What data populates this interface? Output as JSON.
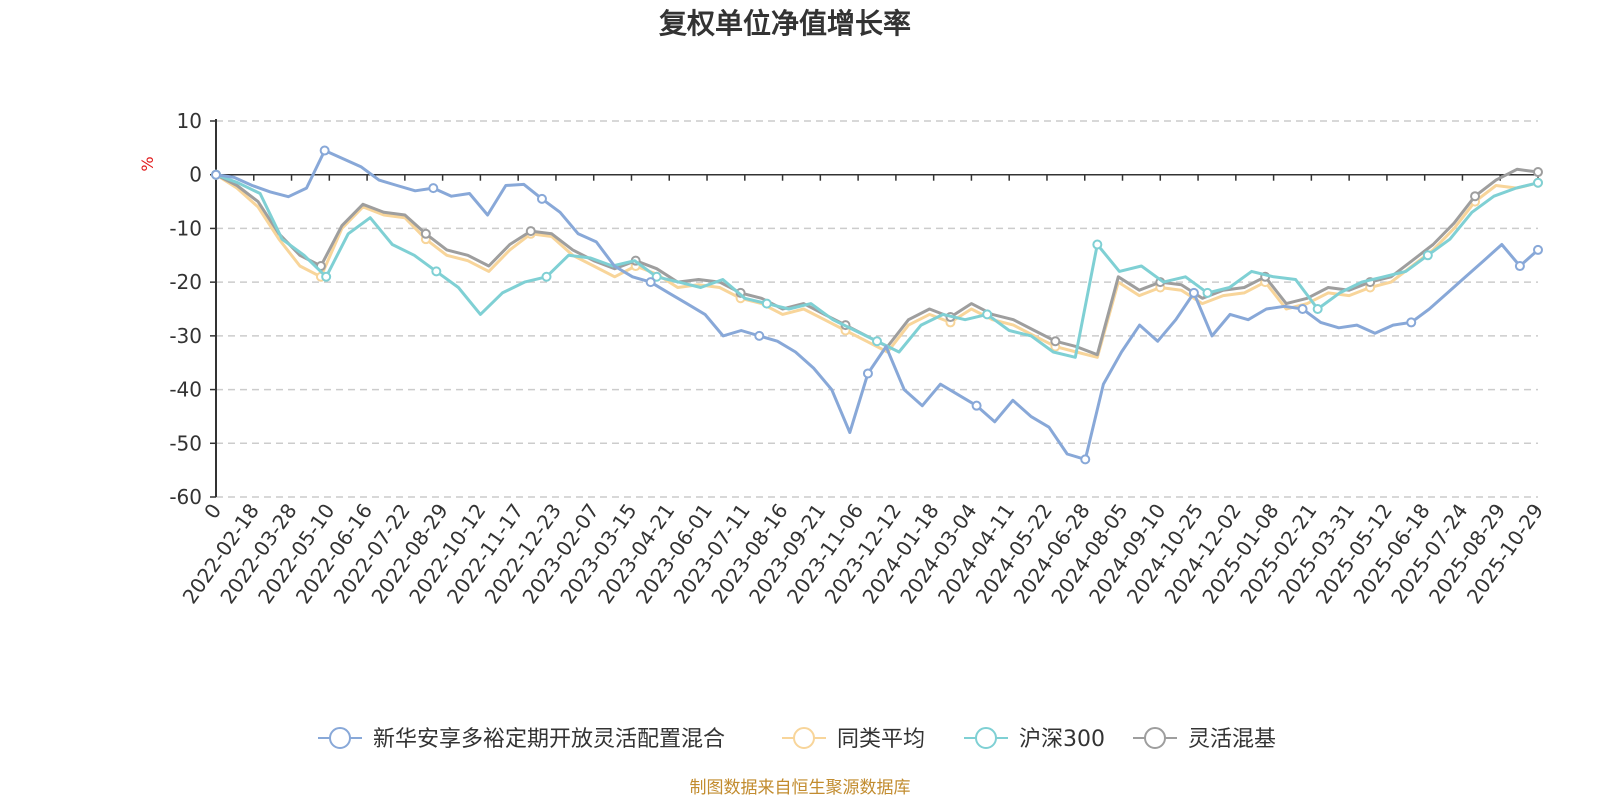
{
  "chart_data": {
    "type": "line",
    "title": "复权单位净值增长率",
    "ylabel": "%",
    "ylim": [
      -60,
      10
    ],
    "yticks": [
      10,
      0,
      -10,
      -20,
      -30,
      -40,
      -50,
      -60
    ],
    "x_tick_labels": [
      "0",
      "2022-02-18",
      "2022-03-28",
      "2022-05-10",
      "2022-06-16",
      "2022-07-22",
      "2022-08-29",
      "2022-10-12",
      "2022-11-17",
      "2022-12-23",
      "2023-02-07",
      "2023-03-15",
      "2023-04-21",
      "2023-06-01",
      "2023-07-11",
      "2023-08-16",
      "2023-09-21",
      "2023-11-06",
      "2023-12-12",
      "2024-01-18",
      "2024-03-04",
      "2024-04-11",
      "2024-05-22",
      "2024-06-28",
      "2024-08-05",
      "2024-09-10",
      "2024-10-25",
      "2024-12-02",
      "2025-01-08",
      "2025-02-21",
      "2025-03-31",
      "2025-05-12",
      "2025-06-18",
      "2025-07-24",
      "2025-08-29",
      "2025-10-29"
    ],
    "grid": "horizontal-dashed",
    "legend_position": "bottom",
    "series": [
      {
        "name": "新华安享多裕定期开放灵活配置混合",
        "color": "#88a8d8",
        "values": [
          0,
          -0.5,
          -2,
          -3.2,
          -4.1,
          -2.5,
          4.5,
          3,
          1.5,
          -1,
          -2,
          -3,
          -2.5,
          -4,
          -3.5,
          -7.5,
          -2,
          -1.8,
          -4.5,
          -7,
          -11,
          -12.5,
          -17,
          -19,
          -20,
          -22,
          -24,
          -26,
          -30,
          -29,
          -30,
          -31,
          -33,
          -36,
          -40,
          -48,
          -37,
          -32,
          -40,
          -43,
          -39,
          -41,
          -43,
          -46,
          -42,
          -45,
          -47,
          -52,
          -53,
          -39,
          -33,
          -28,
          -31,
          -27,
          -22,
          -30,
          -26,
          -27,
          -25,
          -24.5,
          -25,
          -27.5,
          -28.5,
          -28,
          -29.5,
          -28,
          -27.5,
          -25,
          -22,
          -19,
          -16,
          -13,
          -17,
          -14
        ]
      },
      {
        "name": "同类平均",
        "color": "#f8d59a",
        "values": [
          0,
          -2.5,
          -6,
          -12,
          -17,
          -19,
          -10,
          -6,
          -7.5,
          -8,
          -12,
          -15,
          -16,
          -18,
          -14,
          -11,
          -11.5,
          -15,
          -17,
          -19,
          -17,
          -18.5,
          -21,
          -20.5,
          -21,
          -23,
          -24,
          -26,
          -25,
          -27,
          -29,
          -31,
          -33,
          -28,
          -26,
          -27.5,
          -25,
          -27,
          -28,
          -30,
          -32,
          -33,
          -34,
          -20,
          -22.5,
          -21,
          -21.5,
          -24,
          -22.5,
          -22,
          -20,
          -25,
          -24,
          -22,
          -22.5,
          -21,
          -20,
          -17,
          -14,
          -10,
          -5,
          -2,
          -2.5,
          -1.5
        ]
      },
      {
        "name": "沪深300",
        "color": "#7fd0d4",
        "values": [
          0,
          -1.5,
          -3.5,
          -12,
          -15,
          -19,
          -11,
          -8,
          -13,
          -15,
          -18,
          -21,
          -26,
          -22,
          -20,
          -19,
          -15,
          -15.5,
          -17,
          -16,
          -19,
          -20,
          -21,
          -19.5,
          -23,
          -24,
          -25,
          -24,
          -27,
          -29,
          -31,
          -33,
          -28,
          -26,
          -27,
          -26,
          -29,
          -30,
          -33,
          -34,
          -13,
          -18,
          -17,
          -20,
          -19,
          -22,
          -21,
          -18,
          -19,
          -19.5,
          -25,
          -22,
          -20,
          -19,
          -18,
          -15,
          -12,
          -7,
          -4,
          -2.5,
          -1.5
        ]
      },
      {
        "name": "灵活混基",
        "color": "#9e9e9e",
        "values": [
          0,
          -2,
          -5,
          -11,
          -15,
          -17,
          -9.5,
          -5.5,
          -7,
          -7.5,
          -11,
          -14,
          -15,
          -17,
          -13,
          -10.5,
          -11,
          -14,
          -16,
          -17.5,
          -16,
          -17.5,
          -20,
          -19.5,
          -20,
          -22,
          -23,
          -25,
          -24,
          -26,
          -28,
          -30,
          -32,
          -27,
          -25,
          -26.5,
          -24,
          -26,
          -27,
          -29,
          -31,
          -32,
          -33.5,
          -19,
          -21.5,
          -20,
          -20.5,
          -23,
          -21.5,
          -21,
          -19,
          -24,
          -23,
          -21,
          -21.5,
          -20,
          -19,
          -16,
          -13,
          -9,
          -4,
          -1,
          1,
          0.5
        ]
      }
    ]
  },
  "source_text": "制图数据来自恒生聚源数据库"
}
